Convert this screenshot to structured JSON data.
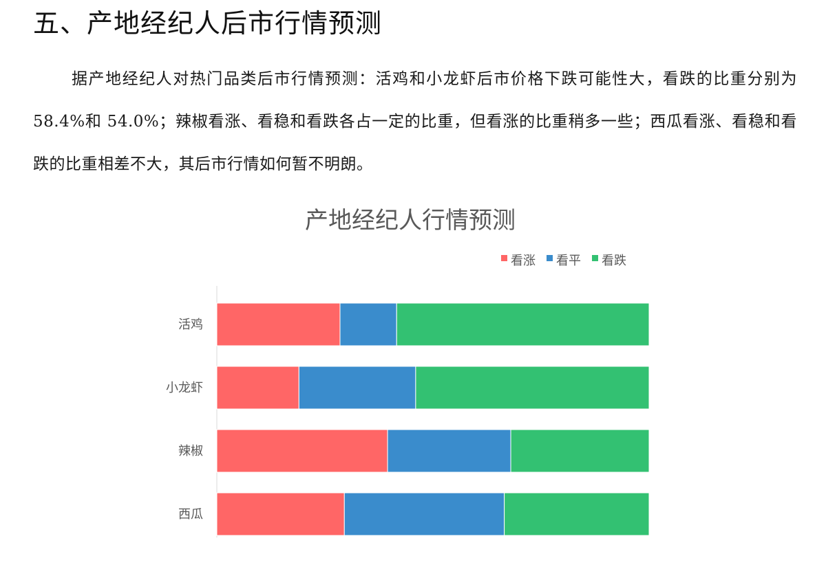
{
  "section": {
    "heading": "五、产地经纪人后市行情预测",
    "paragraph": "据产地经纪人对热门品类后市行情预测：活鸡和小龙虾后市价格下跌可能性大，看跌的比重分别为 58.4%和 54.0%；辣椒看涨、看稳和看跌各占一定的比重，但看涨的比重稍多一些；西瓜看涨、看稳和看跌的比重相差不大，其后市行情如何暂不明朗。"
  },
  "chart_data": {
    "type": "bar",
    "orientation": "horizontal",
    "stacked": true,
    "title": "产地经纪人行情预测",
    "categories": [
      "活鸡",
      "小龙虾",
      "辣椒",
      "西瓜"
    ],
    "series": [
      {
        "name": "看涨",
        "color": "#ff6666",
        "values": [
          28.5,
          19.0,
          39.5,
          29.5
        ]
      },
      {
        "name": "看平",
        "color": "#3a8ccc",
        "values": [
          13.1,
          27.0,
          28.5,
          37.0
        ]
      },
      {
        "name": "看跌",
        "color": "#33c172",
        "values": [
          58.4,
          54.0,
          32.0,
          33.5
        ]
      }
    ],
    "xlim": [
      0,
      100
    ],
    "legend_position": "top-right",
    "grid": false
  }
}
